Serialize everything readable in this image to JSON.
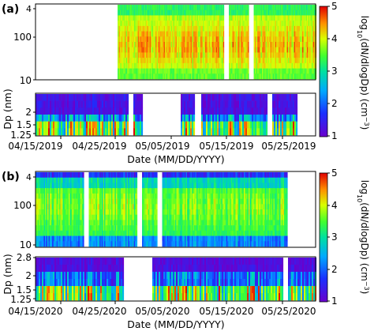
{
  "chart_data": [
    {
      "type": "heatmap",
      "panel_label": "(a)",
      "ylabel": "Dp (nm)",
      "xlabel": "Date (MM/DD/YYYY)",
      "x_tick_labels": [
        "04/15/2019",
        "04/25/2019",
        "05/05/2019",
        "05/15/2019",
        "05/25/2019"
      ],
      "x_range": [
        "2019-04-08",
        "2019-06-05"
      ],
      "upper": {
        "yscale": "log",
        "ylim": [
          10,
          600
        ],
        "y_ticks": [
          10,
          100
        ],
        "y_tick_labels": [
          "10",
          "100"
        ],
        "extra_tick_labels": [
          "4"
        ],
        "data_start": "2019-04-25",
        "data_end": "2019-06-05",
        "gaps": [
          [
            "2019-05-17",
            "2019-05-18"
          ],
          [
            "2019-05-22",
            "2019-05-23"
          ]
        ]
      },
      "lower": {
        "ylim": [
          1.2,
          2.8
        ],
        "y_ticks": [
          1.25,
          1.5,
          2
        ],
        "y_tick_labels": [
          "1.25",
          "1.5",
          "2"
        ],
        "gaps": [
          [
            "2019-04-27",
            "2019-04-28"
          ],
          [
            "2019-04-30",
            "2019-05-08"
          ],
          [
            "2019-05-11",
            "2019-05-12"
          ],
          [
            "2019-05-26",
            "2019-05-27"
          ],
          [
            "2019-06-01",
            "2019-06-05"
          ]
        ]
      },
      "colorbar": {
        "label": "log10(dN/dlogDp) (cm-3)",
        "label_parts": [
          "log",
          "10",
          "(dN/dlogDp) (cm",
          "−3",
          ")"
        ],
        "range": [
          1,
          5
        ],
        "ticks": [
          1,
          2,
          3,
          4,
          5
        ],
        "colormap": "rainbow"
      }
    },
    {
      "type": "heatmap",
      "panel_label": "(b)",
      "ylabel": "Dp (nm)",
      "xlabel": "Date (MM/DD/YYYY)",
      "x_tick_labels": [
        "04/15/2020",
        "04/25/2020",
        "05/05/2020",
        "05/15/2020",
        "05/25/2020"
      ],
      "x_range": [
        "2020-04-08",
        "2020-06-05"
      ],
      "upper": {
        "yscale": "log",
        "ylim": [
          10,
          600
        ],
        "y_ticks": [
          10,
          100
        ],
        "y_tick_labels": [
          "10",
          "100"
        ],
        "extra_tick_labels": [
          "4"
        ],
        "data_start": "2020-04-08",
        "data_end": "2020-06-05",
        "gaps": [
          [
            "2020-04-18",
            "2020-04-19"
          ],
          [
            "2020-04-29",
            "2020-04-30"
          ],
          [
            "2020-05-03",
            "2020-05-04"
          ],
          [
            "2020-05-30",
            "2020-06-05"
          ]
        ]
      },
      "lower": {
        "ylim": [
          1.2,
          2.8
        ],
        "y_ticks": [
          1.25,
          1.5,
          2,
          2.8
        ],
        "y_tick_labels": [
          "1.25",
          "1.5",
          "2",
          "2.8"
        ],
        "gaps": [
          [
            "2020-04-26",
            "2020-05-02"
          ],
          [
            "2020-05-29",
            "2020-05-30"
          ]
        ]
      },
      "colorbar": {
        "label": "log10(dN/dlogDp) (cm-3)",
        "label_parts": [
          "log",
          "10",
          "(dN/dlogDp) (cm",
          "−3",
          ")"
        ],
        "range": [
          1,
          5
        ],
        "ticks": [
          1,
          2,
          3,
          4,
          5
        ],
        "colormap": "rainbow"
      }
    }
  ]
}
